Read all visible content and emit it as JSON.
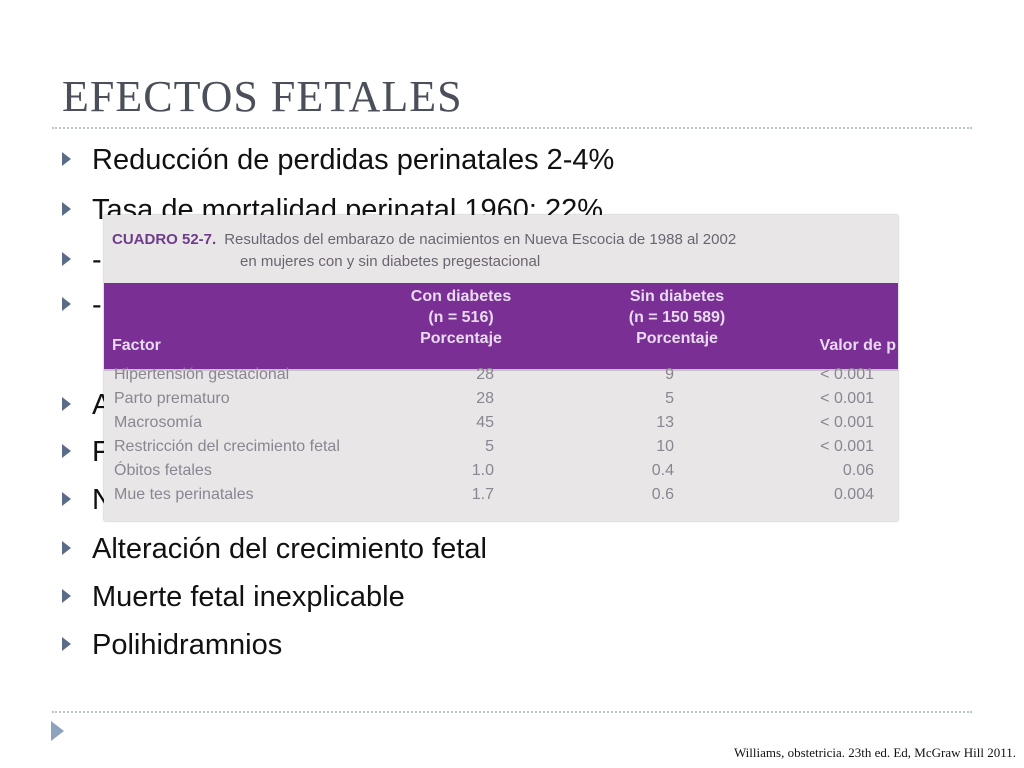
{
  "slide": {
    "title": "EFECTOS FETALES",
    "bullets": [
      "Reducción de perdidas perinatales 2-4%",
      "Tasa de mortalidad perinatal 1960: 22%",
      "-",
      "-",
      "A",
      "F",
      "N",
      "Alteración del crecimiento fetal",
      "Muerte fetal inexplicable",
      "Polihidramnios"
    ],
    "citation": "Williams, obstetricia. 23th ed. Ed, McGraw Hill 2011."
  },
  "table": {
    "caption_label": "CUADRO 52-7.",
    "caption_line1": "Resultados del embarazo de nacimientos en Nueva Escocia de 1988 al 2002",
    "caption_line2": "en mujeres con y sin diabetes pregestacional",
    "headers": {
      "factor": "Factor",
      "col1_l1": "Con diabetes",
      "col1_l2": "(n  =  516)",
      "col1_l3": "Porcentaje",
      "col2_l1": "Sin diabetes",
      "col2_l2": "(n  =  150 589)",
      "col2_l3": "Porcentaje",
      "col3": "Valor de p"
    },
    "rows": [
      {
        "factor": "Hipertensión gestacional",
        "con": "28",
        "sin": "9",
        "p": "< 0.001"
      },
      {
        "factor": "Parto prematuro",
        "con": "28",
        "sin": "5",
        "p": "< 0.001"
      },
      {
        "factor": "Macrosomía",
        "con": "45",
        "sin": "13",
        "p": "< 0.001"
      },
      {
        "factor": "Restricción del crecimiento fetal",
        "con": "5",
        "sin": "10",
        "p": "< 0.001"
      },
      {
        "factor": "Óbitos fetales",
        "con": "1.0",
        "sin": "0.4",
        "p": "0.06"
      },
      {
        "factor": "Mue tes perinatales",
        "con": "1.7",
        "sin": "0.6",
        "p": "0.004"
      }
    ]
  },
  "colors": {
    "table_header": "#7a2f94",
    "bullet_marker": "#5a6d86",
    "title": "#4a4f5a"
  }
}
